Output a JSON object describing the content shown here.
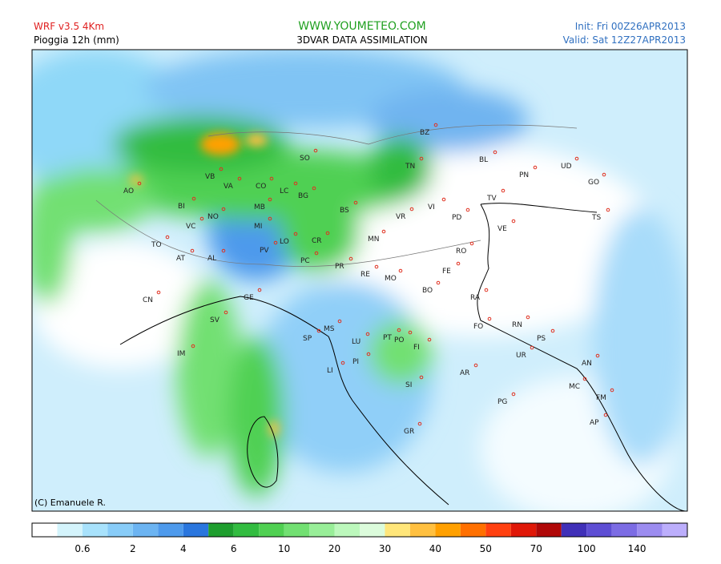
{
  "header": {
    "model": "WRF v3.5 4Km",
    "field": "Pioggia 12h (mm)",
    "site": "WWW.YOUMETEO.COM",
    "method": "3DVAR DATA ASSIMILATION",
    "init": "Init: Fri  00Z26APR2013",
    "valid": "Valid: Sat 12Z27APR2013"
  },
  "map": {
    "cities": [
      "AO",
      "BI",
      "VB",
      "VA",
      "CO",
      "LC",
      "BG",
      "SO",
      "BZ",
      "TN",
      "BL",
      "PN",
      "UD",
      "GO",
      "TS",
      "TV",
      "VI",
      "PD",
      "VE",
      "VR",
      "BS",
      "MB",
      "NO",
      "VC",
      "MI",
      "TO",
      "AT",
      "AL",
      "PV",
      "LO",
      "CR",
      "PC",
      "PR",
      "MN",
      "RO",
      "FE",
      "RE",
      "MO",
      "BO",
      "RA",
      "CN",
      "GE",
      "SV",
      "FO",
      "RN",
      "PS",
      "MS",
      "SP",
      "LU",
      "PT",
      "PO",
      "FI",
      "UR",
      "IM",
      "PI",
      "AN",
      "LI",
      "AR",
      "SI",
      "MC",
      "FM",
      "PG",
      "AP",
      "GR"
    ],
    "credit": "(C) Emanuele R."
  },
  "legend": {
    "colors": [
      "#ffffff",
      "#d4f4fc",
      "#a8e2fc",
      "#88ccf8",
      "#6cb4f2",
      "#4e9aec",
      "#2a76de",
      "#1e9e2e",
      "#32bc40",
      "#50d052",
      "#72e072",
      "#98ee98",
      "#bcf8bc",
      "#dcfcdc",
      "#ffe67a",
      "#ffc040",
      "#ffa000",
      "#ff7000",
      "#ff4010",
      "#e01808",
      "#b00808",
      "#4030b8",
      "#5e4ed4",
      "#7c6ce4",
      "#9c8cf0",
      "#bcaefc"
    ],
    "labels": [
      "0.6",
      "2",
      "4",
      "6",
      "10",
      "20",
      "30",
      "40",
      "50",
      "70",
      "100",
      "140"
    ]
  }
}
